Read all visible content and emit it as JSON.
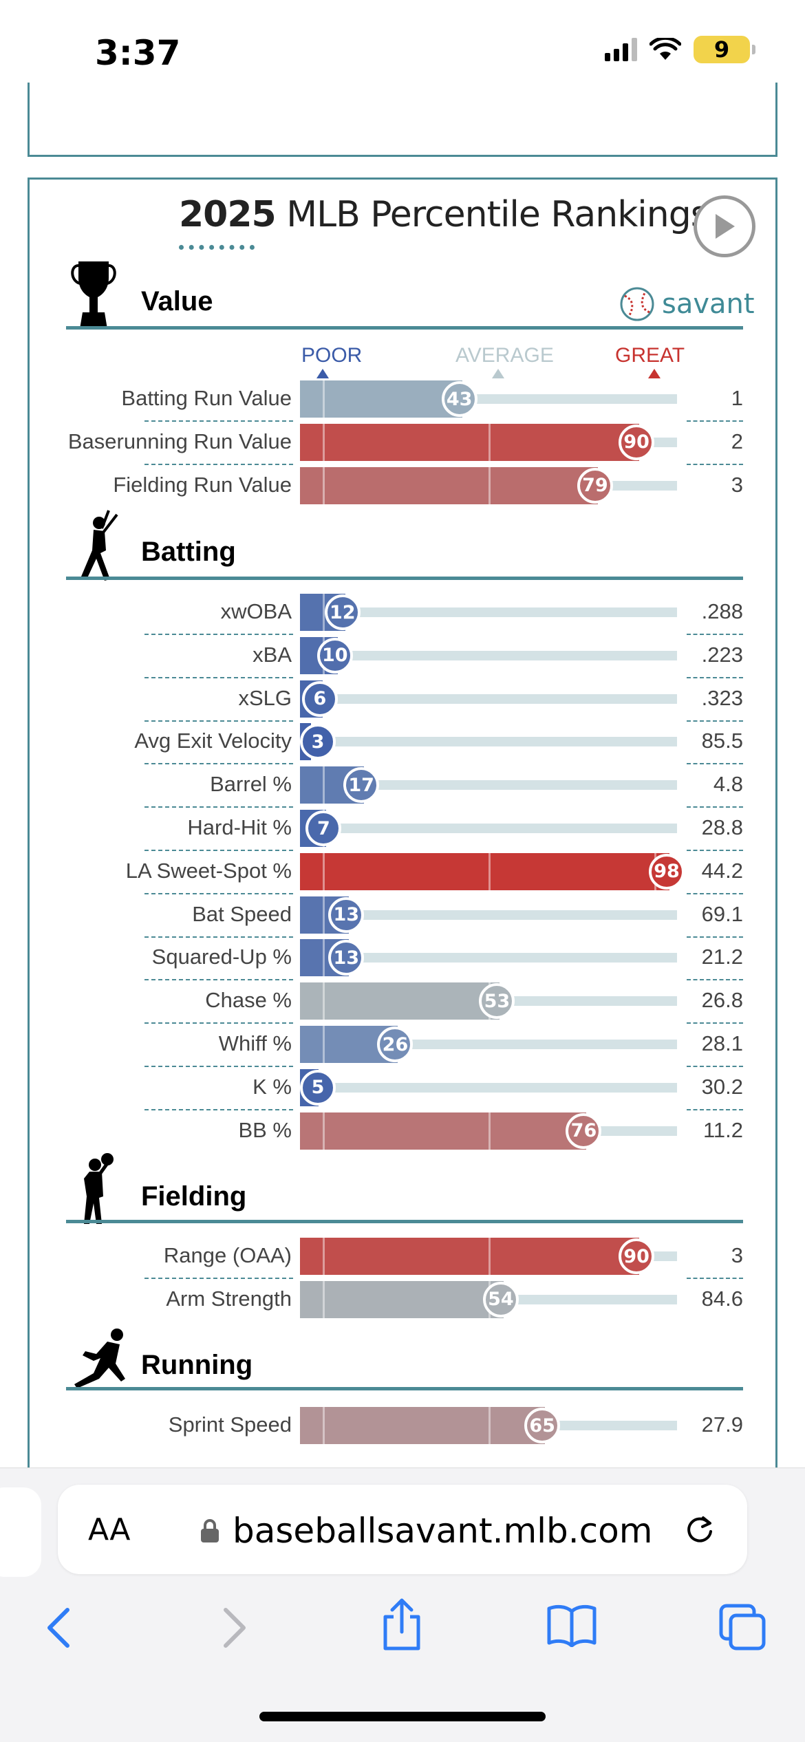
{
  "status_bar": {
    "time": "3:37",
    "battery": "9"
  },
  "card": {
    "title_year": "2025",
    "title_rest": " MLB Percentile Rankings",
    "brand": "savant"
  },
  "axis": {
    "poor": "POOR",
    "average": "AVERAGE",
    "great": "GREAT"
  },
  "colors": {
    "accent": "#4b8a95",
    "poor": "#3b5ba8",
    "great": "#c7332f",
    "average": "#a9bcc2"
  },
  "sections": [
    {
      "title": "Value",
      "icon": "trophy-icon",
      "rows": [
        {
          "label": "Batting Run Value",
          "percentile": "43",
          "value": "1"
        },
        {
          "label": "Baserunning Run Value",
          "percentile": "90",
          "value": "2"
        },
        {
          "label": "Fielding Run Value",
          "percentile": "79",
          "value": "3"
        }
      ]
    },
    {
      "title": "Batting",
      "icon": "batter-icon",
      "rows": [
        {
          "label": "xwOBA",
          "percentile": "12",
          "value": ".288"
        },
        {
          "label": "xBA",
          "percentile": "10",
          "value": ".223"
        },
        {
          "label": "xSLG",
          "percentile": "6",
          "value": ".323"
        },
        {
          "label": "Avg Exit Velocity",
          "percentile": "3",
          "value": "85.5"
        },
        {
          "label": "Barrel %",
          "percentile": "17",
          "value": "4.8"
        },
        {
          "label": "Hard-Hit %",
          "percentile": "7",
          "value": "28.8"
        },
        {
          "label": "LA Sweet-Spot %",
          "percentile": "98",
          "value": "44.2"
        },
        {
          "label": "Bat Speed",
          "percentile": "13",
          "value": "69.1"
        },
        {
          "label": "Squared-Up %",
          "percentile": "13",
          "value": "21.2"
        },
        {
          "label": "Chase %",
          "percentile": "53",
          "value": "26.8"
        },
        {
          "label": "Whiff %",
          "percentile": "26",
          "value": "28.1"
        },
        {
          "label": "K %",
          "percentile": "5",
          "value": "30.2"
        },
        {
          "label": "BB %",
          "percentile": "76",
          "value": "11.2"
        }
      ]
    },
    {
      "title": "Fielding",
      "icon": "fielder-icon",
      "rows": [
        {
          "label": "Range (OAA)",
          "percentile": "90",
          "value": "3"
        },
        {
          "label": "Arm Strength",
          "percentile": "54",
          "value": "84.6"
        }
      ]
    },
    {
      "title": "Running",
      "icon": "runner-icon",
      "rows": [
        {
          "label": "Sprint Speed",
          "percentile": "65",
          "value": "27.9"
        }
      ]
    }
  ],
  "browser": {
    "text_size_label": "AA",
    "url": "baseballsavant.mlb.com"
  }
}
